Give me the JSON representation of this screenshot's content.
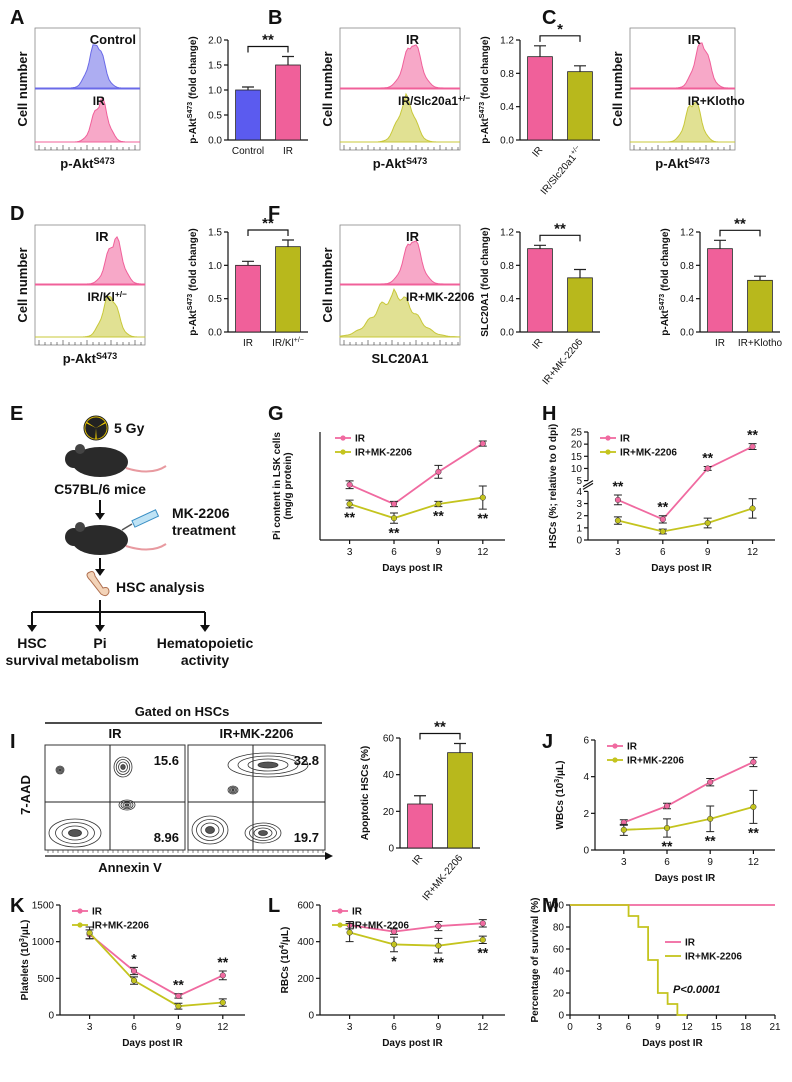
{
  "panel_labels": [
    "A",
    "B",
    "C",
    "D",
    "E",
    "F",
    "G",
    "H",
    "I",
    "J",
    "K",
    "L",
    "M"
  ],
  "histograms": [
    {
      "ylabel": "Cell number",
      "top": "Control",
      "bottom": "IR",
      "xlabel": [
        "p-Akt",
        "S473"
      ]
    },
    {
      "ylabel": "Cell number",
      "top": "IR",
      "bottom": [
        "IR/Slc20a1",
        "+/−"
      ],
      "xlabel": [
        "p-Akt",
        "S473"
      ]
    },
    {
      "ylabel": "Cell number",
      "top": "IR",
      "bottom": "IR+Klotho",
      "xlabel": [
        "p-Akt",
        "S473"
      ]
    },
    {
      "ylabel": "Cell number",
      "top": "IR",
      "bottom": [
        "IR/Kl",
        "+/−"
      ],
      "xlabel": [
        "p-Akt",
        "S473"
      ]
    },
    {
      "ylabel": "Cell number",
      "top": "IR",
      "bottom": "IR+MK-2206",
      "xlabel": "SLC20A1"
    }
  ],
  "schematic": {
    "dose": "5 Gy",
    "strain": "C57BL/6 mice",
    "drug": [
      "MK-2206",
      "treatment"
    ],
    "analysis": "HSC analysis",
    "outcomes": [
      [
        "HSC",
        "survival"
      ],
      [
        "Pi",
        "metabolism"
      ],
      [
        "Hematopoietic",
        "activity"
      ]
    ]
  },
  "flow": {
    "gate": "Gated on HSCs",
    "samples": [
      "IR",
      "IR+MK-2206"
    ],
    "ylabel": "7-AAD",
    "xlabel": "Annexin V",
    "quadrants": [
      [
        15.6,
        8.96
      ],
      [
        32.8,
        19.7
      ]
    ]
  },
  "chart_data": [
    {
      "type": "bar",
      "ylabel": [
        "p-Akt",
        "S473",
        " (fold change)"
      ],
      "categories": [
        "Control",
        "IR"
      ],
      "values": [
        1.0,
        1.5
      ],
      "errors": [
        0.06,
        0.17
      ],
      "colors": [
        "#5b5bef",
        "#f0609a"
      ],
      "ylim": [
        0,
        2
      ],
      "yticks": [
        {
          "value": 0,
          "label": "0.0"
        },
        0.5,
        {
          "value": 1,
          "label": "1.0"
        },
        1.5,
        {
          "value": 2,
          "label": "2.0"
        }
      ],
      "sig": "**"
    },
    {
      "type": "bar",
      "ylabel": [
        "p-Akt",
        "S473",
        " (fold change)"
      ],
      "categories": [
        "IR",
        [
          "IR/Slc20a1",
          "+/−"
        ]
      ],
      "values": [
        1.0,
        0.82
      ],
      "errors": [
        0.13,
        0.07
      ],
      "colors": [
        "#f0609a",
        "#b8b81c"
      ],
      "ylim": [
        0,
        1.2
      ],
      "yticks": [
        {
          "value": 0,
          "label": "0.0"
        },
        0.4,
        0.8,
        1.2
      ],
      "sig": "*"
    },
    {
      "type": "bar",
      "ylabel": [
        "p-Akt",
        "S473",
        " (fold change)"
      ],
      "categories": [
        "IR",
        "IR+Klotho"
      ],
      "values": [
        1.0,
        0.62
      ],
      "errors": [
        0.1,
        0.05
      ],
      "colors": [
        "#f0609a",
        "#b8b81c"
      ],
      "ylim": [
        0,
        1.2
      ],
      "yticks": [
        {
          "value": 0,
          "label": "0.0"
        },
        0.4,
        0.8,
        1.2
      ],
      "sig": "**"
    },
    {
      "type": "bar",
      "ylabel": [
        "p-Akt",
        "S473",
        " (fold change)"
      ],
      "categories": [
        "IR",
        [
          "IR/Kl",
          "+/−"
        ]
      ],
      "values": [
        1.0,
        1.28
      ],
      "errors": [
        0.06,
        0.1
      ],
      "colors": [
        "#f0609a",
        "#b8b81c"
      ],
      "ylim": [
        0,
        1.5
      ],
      "yticks": [
        {
          "value": 0,
          "label": "0.0"
        },
        0.5,
        {
          "value": 1,
          "label": "1.0"
        },
        1.5
      ],
      "sig": "**"
    },
    {
      "type": "bar",
      "ylabel": "SLC20A1 (fold change)",
      "categories": [
        "IR",
        "IR+MK-2206"
      ],
      "values": [
        1.0,
        0.65
      ],
      "errors": [
        0.04,
        0.1
      ],
      "colors": [
        "#f0609a",
        "#b8b81c"
      ],
      "ylim": [
        0,
        1.2
      ],
      "yticks": [
        {
          "value": 0,
          "label": "0.0"
        },
        0.4,
        0.8,
        1.2
      ],
      "sig": "**"
    },
    {
      "type": "line",
      "ylabel": [
        "Pi content in LSK cells",
        "(mg/g protein)"
      ],
      "xlabel": "Days post IR",
      "x": [
        3,
        6,
        9,
        12
      ],
      "xlim": [
        1,
        13.5
      ],
      "xticks": [
        3,
        6,
        9,
        12
      ],
      "ylim": [
        0,
        4.2
      ],
      "yticks": [],
      "series": [
        {
          "name": "IR",
          "color": "#f06aa0",
          "values": [
            2.15,
            1.4,
            2.65,
            3.75
          ],
          "errors": [
            0.15,
            0.1,
            0.25,
            0.1
          ]
        },
        {
          "name": "IR+MK-2206",
          "color": "#c4c41e",
          "values": [
            1.4,
            0.85,
            1.4,
            1.65
          ],
          "errors": [
            0.15,
            0.2,
            0.1,
            0.45
          ]
        }
      ],
      "sig": [
        "**",
        "**",
        "**",
        "**"
      ]
    },
    {
      "type": "line",
      "ylabel": "HSCs (%; relative to 0 dpi)",
      "xlabel": "Days post IR",
      "x": [
        3,
        6,
        9,
        12
      ],
      "xlim": [
        1,
        13.5
      ],
      "xticks": [
        3,
        6,
        9,
        12
      ],
      "ylim": [
        0,
        25
      ],
      "ybreak": [
        4,
        5
      ],
      "yticks": [
        0,
        1,
        2,
        3,
        4,
        5,
        10,
        15,
        20,
        25
      ],
      "series": [
        {
          "name": "IR",
          "color": "#f06aa0",
          "values": [
            3.3,
            1.7,
            10,
            19
          ],
          "errors": [
            0.4,
            0.3,
            0.8,
            1.2
          ]
        },
        {
          "name": "IR+MK-2206",
          "color": "#c4c41e",
          "values": [
            1.6,
            0.7,
            1.4,
            2.6
          ],
          "errors": [
            0.3,
            0.2,
            0.4,
            0.8
          ]
        }
      ],
      "sig": [
        "**",
        "**",
        "**",
        "**"
      ]
    },
    {
      "type": "bar",
      "ylabel": "Apoptotic HSCs (%)",
      "categories": [
        "IR",
        "IR+MK-2206"
      ],
      "values": [
        24,
        52
      ],
      "errors": [
        4.5,
        5
      ],
      "colors": [
        "#f0609a",
        "#b8b81c"
      ],
      "ylim": [
        0,
        60
      ],
      "yticks": [
        0,
        20,
        40,
        60
      ],
      "sig": "**"
    },
    {
      "type": "line",
      "ylabel": [
        "WBCs (10",
        "3",
        "/μL)"
      ],
      "xlabel": "Days post IR",
      "x": [
        3,
        6,
        9,
        12
      ],
      "xlim": [
        1,
        13.5
      ],
      "xticks": [
        3,
        6,
        9,
        12
      ],
      "ylim": [
        0,
        6
      ],
      "yticks": [
        0,
        2,
        4,
        6
      ],
      "series": [
        {
          "name": "IR",
          "color": "#f06aa0",
          "values": [
            1.5,
            2.4,
            3.7,
            4.8
          ],
          "errors": [
            0.15,
            0.15,
            0.2,
            0.25
          ]
        },
        {
          "name": "IR+MK-2206",
          "color": "#c4c41e",
          "values": [
            1.1,
            1.2,
            1.7,
            2.35
          ],
          "errors": [
            0.3,
            0.5,
            0.7,
            0.9
          ]
        }
      ],
      "sig": [
        null,
        "**",
        "**",
        "**"
      ]
    },
    {
      "type": "line",
      "ylabel": [
        "Platelets (10",
        "3",
        "/μL)"
      ],
      "xlabel": "Days post IR",
      "x": [
        3,
        6,
        9,
        12
      ],
      "xlim": [
        1,
        13.5
      ],
      "xticks": [
        3,
        6,
        9,
        12
      ],
      "ylim": [
        0,
        1500
      ],
      "yticks": [
        0,
        500,
        1000,
        1500
      ],
      "series": [
        {
          "name": "IR",
          "color": "#f06aa0",
          "values": [
            1100,
            600,
            260,
            540
          ],
          "errors": [
            60,
            50,
            30,
            60
          ]
        },
        {
          "name": "IR+MK-2206",
          "color": "#c4c41e",
          "values": [
            1120,
            470,
            120,
            170
          ],
          "errors": [
            80,
            50,
            40,
            50
          ]
        }
      ],
      "sig": [
        null,
        "*",
        "**",
        "**"
      ]
    },
    {
      "type": "line",
      "ylabel": [
        "RBCs (10",
        "4",
        "/μL)"
      ],
      "xlabel": "Days post IR",
      "x": [
        3,
        6,
        9,
        12
      ],
      "xlim": [
        1,
        13.5
      ],
      "xticks": [
        3,
        6,
        9,
        12
      ],
      "ylim": [
        0,
        600
      ],
      "yticks": [
        0,
        200,
        400,
        600
      ],
      "series": [
        {
          "name": "IR",
          "color": "#f06aa0",
          "values": [
            490,
            455,
            485,
            500
          ],
          "errors": [
            20,
            15,
            25,
            20
          ]
        },
        {
          "name": "IR+MK-2206",
          "color": "#c4c41e",
          "values": [
            450,
            385,
            378,
            410
          ],
          "errors": [
            50,
            40,
            40,
            20
          ]
        }
      ],
      "sig": [
        null,
        "*",
        "**",
        "**"
      ]
    },
    {
      "type": "line",
      "ylabel": "Percentage of survival (%)",
      "xlabel": "Days post IR",
      "xlim": [
        0,
        21
      ],
      "xticks": [
        0,
        3,
        6,
        9,
        12,
        15,
        18,
        21
      ],
      "ylim": [
        0,
        100
      ],
      "yticks": [
        0,
        20,
        40,
        60,
        80,
        100
      ],
      "annotation": "P<0.0001",
      "series": [
        {
          "name": "IR",
          "color": "#f06aa0",
          "x": [
            0,
            21
          ],
          "values": [
            100,
            100
          ]
        },
        {
          "name": "IR+MK-2206",
          "color": "#c4c41e",
          "x": [
            0,
            6,
            6,
            7,
            7,
            8,
            8,
            9,
            9,
            10,
            10,
            11,
            11,
            12
          ],
          "values": [
            100,
            100,
            90,
            90,
            80,
            80,
            50,
            50,
            20,
            20,
            10,
            10,
            0,
            0
          ]
        }
      ]
    }
  ]
}
